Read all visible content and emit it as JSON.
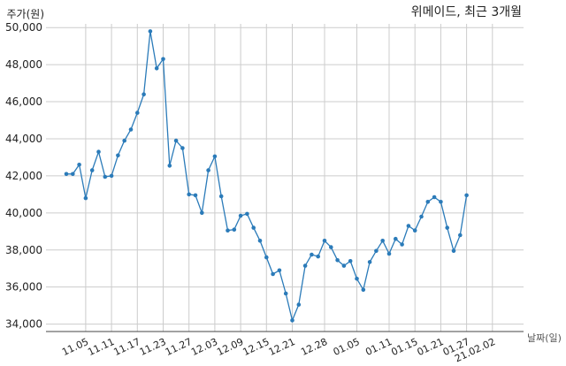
{
  "chart_data": {
    "type": "line",
    "title": "위메이드, 최근 3개월",
    "ylabel": "주가(원)",
    "xlabel": "날짜(일)",
    "ylim": [
      33600,
      50200
    ],
    "yticks": [
      34000,
      36000,
      38000,
      40000,
      42000,
      44000,
      46000,
      48000,
      50000
    ],
    "ytick_labels": [
      "34,000",
      "36,000",
      "38,000",
      "40,000",
      "42,000",
      "44,000",
      "46,000",
      "48,000",
      "50,000"
    ],
    "xtick_labels": [
      "11.05",
      "11.11",
      "11.17",
      "11.23",
      "11.27",
      "12.03",
      "12.09",
      "12.15",
      "12.21",
      "12.28",
      "01.05",
      "01.11",
      "01.15",
      "01.21",
      "01.27",
      "21.02.02"
    ],
    "xtick_index": [
      3,
      7,
      11,
      15,
      19,
      23,
      27,
      31,
      35,
      40,
      45,
      50,
      54,
      58,
      62,
      66
    ],
    "grid": true,
    "color": "#2b7bb9",
    "values": [
      42100,
      42100,
      42600,
      40800,
      42300,
      43300,
      41950,
      42000,
      43100,
      43900,
      44500,
      45400,
      46400,
      49800,
      47800,
      48300,
      42550,
      43900,
      43500,
      41000,
      40950,
      40000,
      42300,
      43050,
      40900,
      39050,
      39100,
      39850,
      39950,
      39200,
      38500,
      37600,
      36700,
      36900,
      35650,
      34200,
      35050,
      37150,
      37750,
      37650,
      38500,
      38150,
      37450,
      37150,
      37400,
      36450,
      35850,
      37350,
      37950,
      38500,
      37800,
      38600,
      38300,
      39300,
      39050,
      39800,
      40600,
      40850,
      40600,
      39200,
      37950,
      38800,
      40950
    ]
  }
}
